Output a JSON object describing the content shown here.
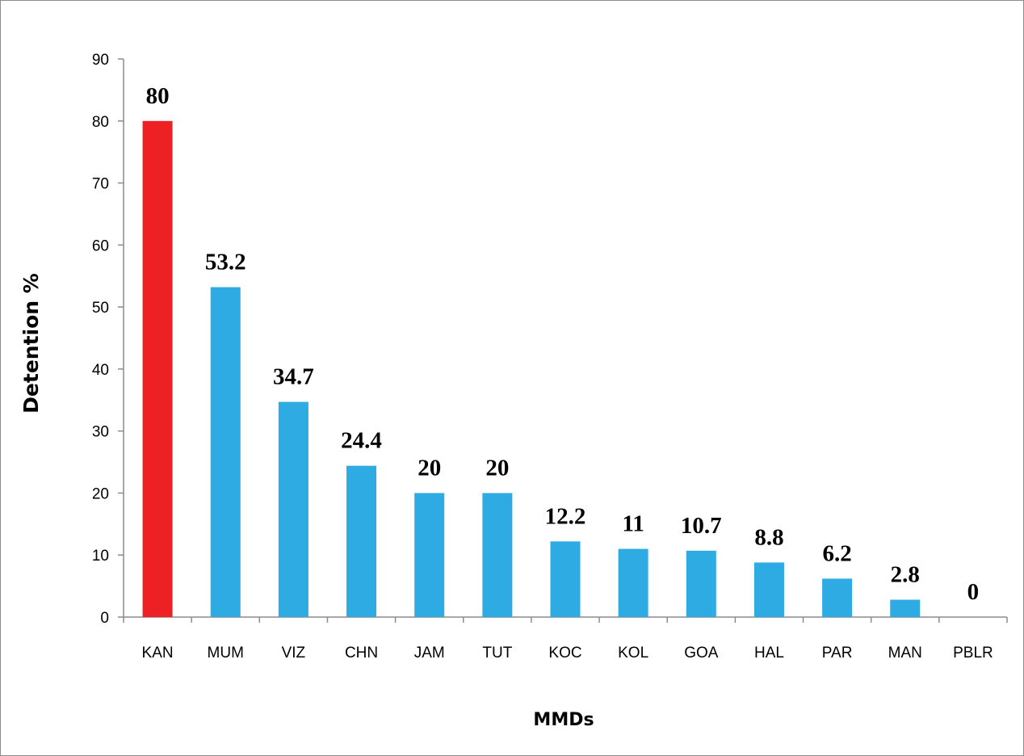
{
  "chart_data": {
    "type": "bar",
    "title": "",
    "xlabel": "MMDs",
    "ylabel": "Detention %",
    "ylim": [
      0,
      90
    ],
    "yticks": [
      0,
      10,
      20,
      30,
      40,
      50,
      60,
      70,
      80,
      90
    ],
    "grid": false,
    "legend": "none",
    "categories": [
      "KAN",
      "MUM",
      "VIZ",
      "CHN",
      "JAM",
      "TUT",
      "KOC",
      "KOL",
      "GOA",
      "HAL",
      "PAR",
      "MAN",
      "PBLR"
    ],
    "values": [
      80,
      53.2,
      34.7,
      24.4,
      20,
      20,
      12.2,
      11,
      10.7,
      8.8,
      6.2,
      2.8,
      0
    ],
    "data_labels": [
      "80",
      "53.2",
      "34.7",
      "24.4",
      "20",
      "20",
      "12.2",
      "11",
      "10.7",
      "8.8",
      "6.2",
      "2.8",
      "0"
    ],
    "colors": {
      "highlight_bar": "#ED2024",
      "bar": "#2DABE2",
      "axis": "#8c8c8c"
    },
    "highlighted_categories": [
      "KAN"
    ]
  }
}
